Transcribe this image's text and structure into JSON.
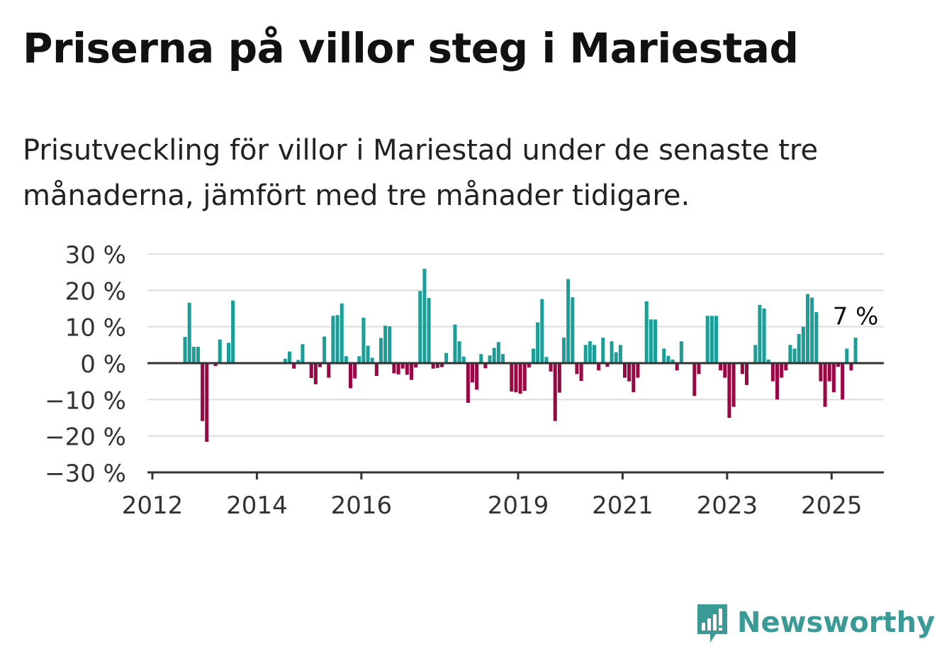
{
  "title": "Priserna på villor steg i Mariestad",
  "subtitle": "Prisutveckling för villor i Mariestad under de senaste tre månaderna, jämfört med tre månader tidigare.",
  "brand": {
    "name": "Newsworthy",
    "icon": "newsworthy-logo-icon",
    "color": "#3a9a96"
  },
  "chart_data": {
    "type": "bar",
    "title": "Priserna på villor steg i Mariestad",
    "x_axis": {
      "ticks": [
        "2012",
        "2014",
        "2016",
        "2019",
        "2021",
        "2023",
        "2025"
      ],
      "range": [
        "2012-01",
        "2025-12"
      ]
    },
    "y_axis": {
      "ticks": [
        "30 %",
        "20 %",
        "10 %",
        "0 %",
        "−10 %",
        "−20 %",
        "−30 %"
      ],
      "range": [
        -30,
        30
      ],
      "grid": true
    },
    "colors": {
      "positive": "#1a9e97",
      "negative": "#990845",
      "grid": "#dddddd",
      "axis": "#333333"
    },
    "annotation": {
      "text": "7 %",
      "target": "2025-06"
    },
    "series": [
      {
        "values": [
          [
            "2012-08",
            7.2
          ],
          [
            "2012-09",
            16.6
          ],
          [
            "2012-10",
            4.5
          ],
          [
            "2012-11",
            4.5
          ],
          [
            "2012-12",
            -15.9
          ],
          [
            "2013-01",
            -21.6
          ],
          [
            "2013-03",
            -0.8
          ],
          [
            "2013-04",
            6.5
          ],
          [
            "2013-06",
            5.6
          ],
          [
            "2013-07",
            17.2
          ],
          [
            "2014-07",
            1.2
          ],
          [
            "2014-08",
            3.2
          ],
          [
            "2014-09",
            -1.5
          ],
          [
            "2014-10",
            0.9
          ],
          [
            "2014-11",
            5.2
          ],
          [
            "2015-01",
            -4.1
          ],
          [
            "2015-02",
            -5.8
          ],
          [
            "2015-03",
            -1.1
          ],
          [
            "2015-04",
            7.3
          ],
          [
            "2015-05",
            -4.0
          ],
          [
            "2015-06",
            13.0
          ],
          [
            "2015-07",
            13.2
          ],
          [
            "2015-08",
            16.4
          ],
          [
            "2015-09",
            1.9
          ],
          [
            "2015-10",
            -6.9
          ],
          [
            "2015-11",
            -4.2
          ],
          [
            "2015-12",
            1.9
          ],
          [
            "2016-01",
            12.5
          ],
          [
            "2016-02",
            4.8
          ],
          [
            "2016-03",
            1.5
          ],
          [
            "2016-04",
            -3.5
          ],
          [
            "2016-05",
            6.9
          ],
          [
            "2016-06",
            10.3
          ],
          [
            "2016-07",
            10.1
          ],
          [
            "2016-08",
            -2.8
          ],
          [
            "2016-09",
            -3.1
          ],
          [
            "2016-10",
            -1.5
          ],
          [
            "2016-11",
            -3.2
          ],
          [
            "2016-12",
            -4.6
          ],
          [
            "2017-01",
            -1.2
          ],
          [
            "2017-02",
            19.8
          ],
          [
            "2017-03",
            25.9
          ],
          [
            "2017-04",
            17.9
          ],
          [
            "2017-05",
            -1.5
          ],
          [
            "2017-06",
            -1.3
          ],
          [
            "2017-07",
            -1.1
          ],
          [
            "2017-08",
            2.8
          ],
          [
            "2017-10",
            10.6
          ],
          [
            "2017-11",
            6.0
          ],
          [
            "2017-12",
            1.8
          ],
          [
            "2018-01",
            -10.9
          ],
          [
            "2018-02",
            -5.3
          ],
          [
            "2018-03",
            -7.3
          ],
          [
            "2018-04",
            2.5
          ],
          [
            "2018-05",
            -1.4
          ],
          [
            "2018-06",
            2.1
          ],
          [
            "2018-07",
            4.2
          ],
          [
            "2018-08",
            5.8
          ],
          [
            "2018-09",
            2.5
          ],
          [
            "2018-11",
            -7.8
          ],
          [
            "2018-12",
            -8.0
          ],
          [
            "2019-01",
            -8.4
          ],
          [
            "2019-02",
            -7.6
          ],
          [
            "2019-03",
            -1.2
          ],
          [
            "2019-04",
            4.0
          ],
          [
            "2019-05",
            11.2
          ],
          [
            "2019-06",
            17.6
          ],
          [
            "2019-07",
            1.7
          ],
          [
            "2019-08",
            -2.3
          ],
          [
            "2019-09",
            -15.9
          ],
          [
            "2019-10",
            -8.1
          ],
          [
            "2019-11",
            7.0
          ],
          [
            "2019-12",
            23.1
          ],
          [
            "2020-01",
            18.1
          ],
          [
            "2020-02",
            -3.0
          ],
          [
            "2020-03",
            -4.9
          ],
          [
            "2020-04",
            5.0
          ],
          [
            "2020-05",
            6.0
          ],
          [
            "2020-06",
            5.0
          ],
          [
            "2020-07",
            -2.0
          ],
          [
            "2020-08",
            7.0
          ],
          [
            "2020-09",
            -1.0
          ],
          [
            "2020-10",
            6.0
          ],
          [
            "2020-11",
            3.0
          ],
          [
            "2020-12",
            5.0
          ],
          [
            "2021-01",
            -4.0
          ],
          [
            "2021-02",
            -5.0
          ],
          [
            "2021-03",
            -8.0
          ],
          [
            "2021-04",
            -4.0
          ],
          [
            "2021-06",
            17.0
          ],
          [
            "2021-07",
            12.0
          ],
          [
            "2021-08",
            12.0
          ],
          [
            "2021-10",
            4.0
          ],
          [
            "2021-11",
            2.0
          ],
          [
            "2021-12",
            1.0
          ],
          [
            "2022-01",
            -2.0
          ],
          [
            "2022-02",
            6.0
          ],
          [
            "2022-05",
            -9.0
          ],
          [
            "2022-06",
            -3.0
          ],
          [
            "2022-08",
            13.0
          ],
          [
            "2022-09",
            13.0
          ],
          [
            "2022-10",
            13.0
          ],
          [
            "2022-11",
            -2.0
          ],
          [
            "2022-12",
            -4.0
          ],
          [
            "2023-01",
            -15.0
          ],
          [
            "2023-02",
            -12.0
          ],
          [
            "2023-04",
            -3.0
          ],
          [
            "2023-05",
            -6.0
          ],
          [
            "2023-07",
            5.0
          ],
          [
            "2023-08",
            16.0
          ],
          [
            "2023-09",
            15.0
          ],
          [
            "2023-10",
            1.0
          ],
          [
            "2023-11",
            -5.0
          ],
          [
            "2023-12",
            -10.0
          ],
          [
            "2024-01",
            -4.0
          ],
          [
            "2024-02",
            -2.0
          ],
          [
            "2024-03",
            5.0
          ],
          [
            "2024-04",
            4.0
          ],
          [
            "2024-05",
            8.0
          ],
          [
            "2024-06",
            10.0
          ],
          [
            "2024-07",
            19.0
          ],
          [
            "2024-08",
            18.0
          ],
          [
            "2024-09",
            14.0
          ],
          [
            "2024-10",
            -5.0
          ],
          [
            "2024-11",
            -12.0
          ],
          [
            "2024-12",
            -5.0
          ],
          [
            "2025-01",
            -8.0
          ],
          [
            "2025-02",
            -1.0
          ],
          [
            "2025-03",
            -10.0
          ],
          [
            "2025-04",
            4.0
          ],
          [
            "2025-05",
            -2.0
          ],
          [
            "2025-06",
            7.0
          ]
        ]
      }
    ]
  }
}
